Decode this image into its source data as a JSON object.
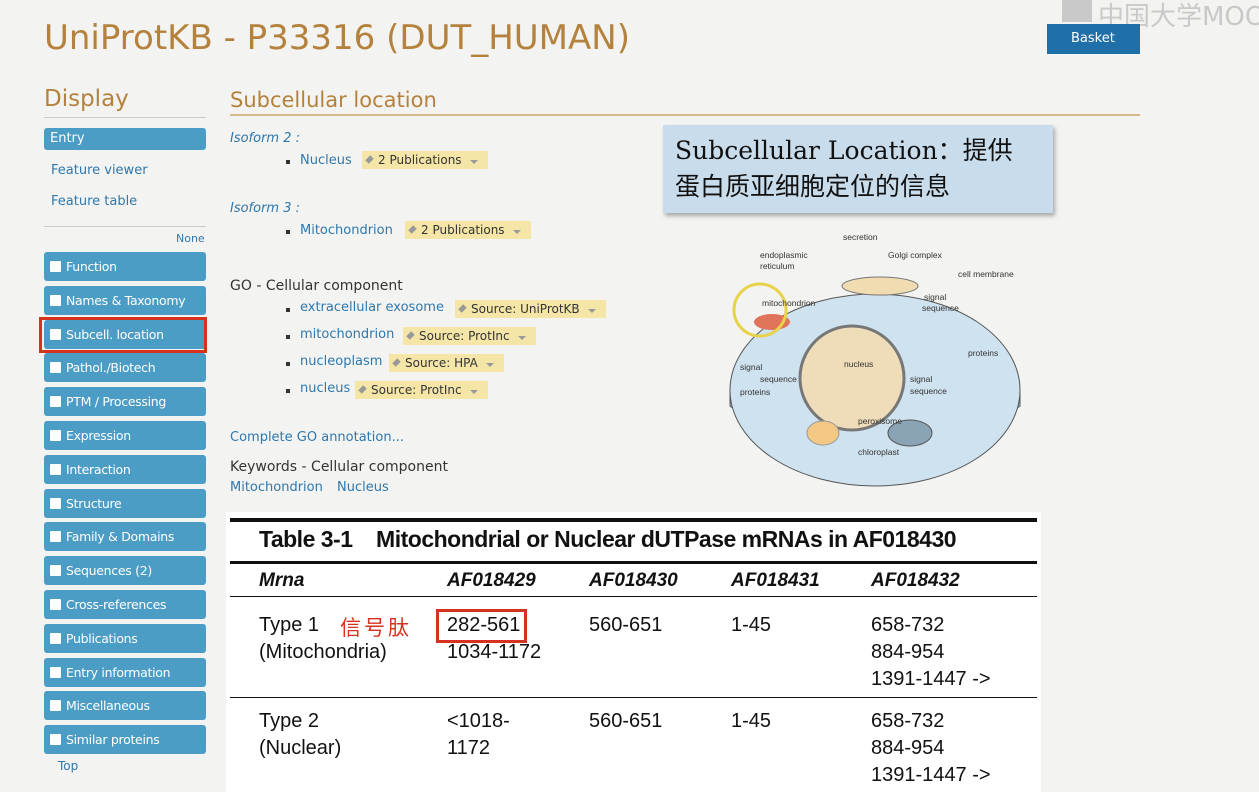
{
  "watermark": "中国大学MOOC",
  "header": {
    "title": "UniProtKB - P33316 (DUT_HUMAN)",
    "basket": "Basket"
  },
  "sidebar": {
    "heading": "Display",
    "links": [
      "Entry",
      "Feature viewer",
      "Feature table"
    ],
    "none": "None",
    "sections": [
      "Function",
      "Names & Taxonomy",
      "Subcell. location",
      "Pathol./Biotech",
      "PTM / Processing",
      "Expression",
      "Interaction",
      "Structure",
      "Family & Domains",
      "Sequences (2)",
      "Cross-references",
      "Publications",
      "Entry information",
      "Miscellaneous",
      "Similar proteins"
    ],
    "top": "Top"
  },
  "main": {
    "heading": "Subcellular location",
    "isoforms": [
      {
        "label": "Isoform 2 :",
        "location": "Nucleus",
        "evidence": "2 Publications"
      },
      {
        "label": "Isoform 3 :",
        "location": "Mitochondrion",
        "evidence": "2 Publications"
      }
    ],
    "go": {
      "heading": "GO - Cellular component",
      "items": [
        {
          "term": "extracellular exosome",
          "source": "Source: UniProtKB"
        },
        {
          "term": "mitochondrion",
          "source": "Source: ProtInc"
        },
        {
          "term": "nucleoplasm",
          "source": "Source: HPA"
        },
        {
          "term": "nucleus",
          "source": "Source: ProtInc"
        }
      ]
    },
    "complete_go": "Complete GO annotation...",
    "keywords": {
      "heading": "Keywords - Cellular component",
      "items": [
        "Mitochondrion",
        "Nucleus"
      ]
    }
  },
  "annotation": {
    "lines": [
      "Subcellular Location：提供",
      "蛋白质亚细胞定位的信息"
    ]
  },
  "diagram": {
    "labels": [
      "secretion",
      "endoplasmic",
      "reticulum",
      "Golgi complex",
      "cell membrane",
      "mitochondrion",
      "signal",
      "sequence",
      "nucleus",
      "proteins",
      "signal",
      "sequence",
      "proteins",
      "signal",
      "sequence",
      "peroxisome",
      "chloroplast"
    ]
  },
  "table": {
    "title": "Table 3-1    Mitochondrial or Nuclear dUTPase mRNAs in AF018430",
    "columns": [
      "Mrna",
      "AF018429",
      "AF018430",
      "AF018431",
      "AF018432"
    ],
    "rows": [
      [
        [
          "Type 1",
          "(Mitochondria)"
        ],
        [
          "282-561",
          "1034-1172"
        ],
        [
          "560-651"
        ],
        [
          "1-45"
        ],
        [
          "658-732",
          "884-954",
          "1391-1447 ->"
        ]
      ],
      [
        [
          "Type 2",
          "(Nuclear)"
        ],
        [
          "<1018-",
          "1172"
        ],
        [
          "560-651"
        ],
        [
          "1-45"
        ],
        [
          "658-732",
          "884-954",
          "1391-1447 ->"
        ]
      ]
    ],
    "note": "信号肽"
  }
}
